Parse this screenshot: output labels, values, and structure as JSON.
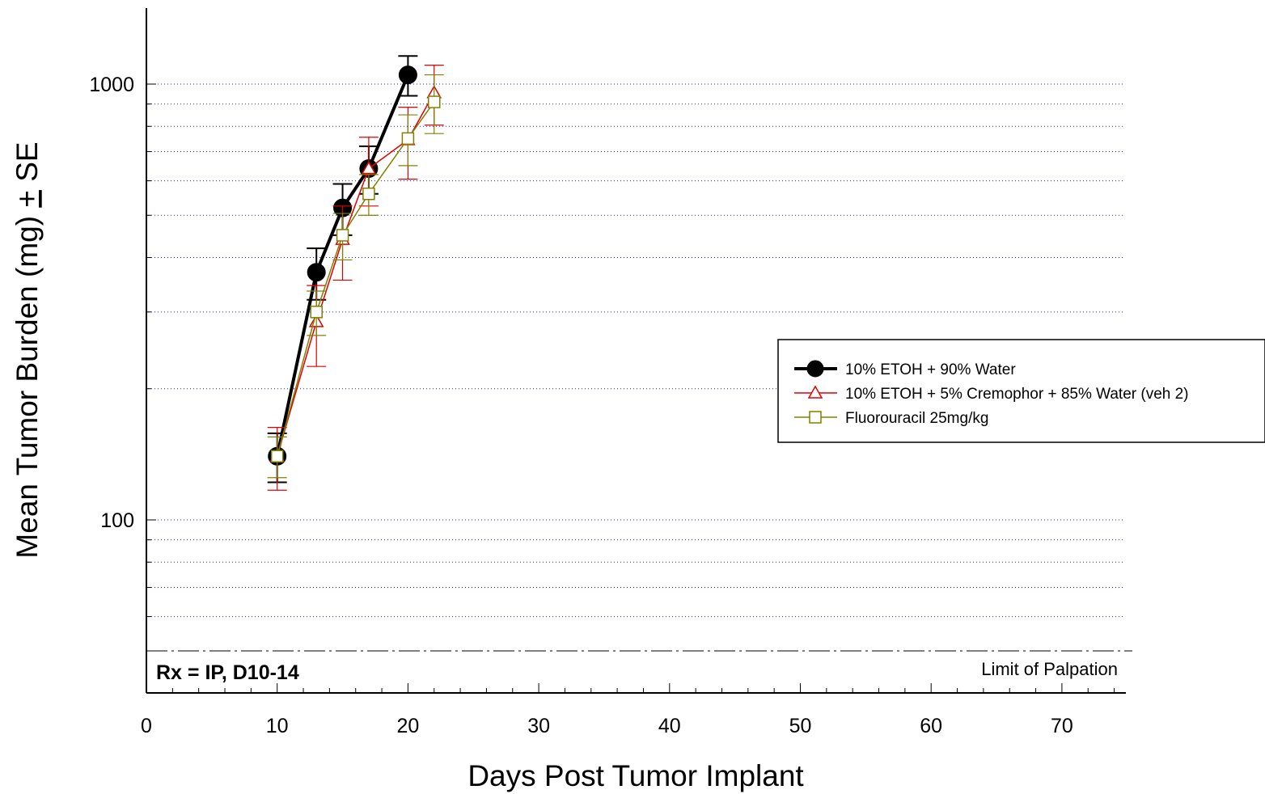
{
  "chart_data": {
    "type": "line",
    "title": "",
    "xlabel": "Days Post Tumor Implant",
    "ylabel_prefix": "Mean Tumor Burden (mg) ",
    "ylabel_pm": "+",
    "ylabel_suffix": " SE",
    "xlim": [
      0,
      75
    ],
    "ylim": [
      50,
      1600
    ],
    "yscale": "log",
    "x_ticks": [
      "0",
      "10",
      "20",
      "30",
      "40",
      "50",
      "60",
      "70"
    ],
    "y_tick_labels": [
      "100",
      "1000"
    ],
    "grid": "horizontal dotted, blue",
    "limit_line": {
      "y": 50,
      "label": "Limit of Palpation",
      "style": "dash-dot"
    },
    "annotation": "Rx = IP, D10-14",
    "legend_position": "right",
    "series": [
      {
        "name": "10% ETOH + 90% Water",
        "color": "#000000",
        "marker": "filled-circle",
        "x": [
          10,
          13,
          15,
          17,
          20
        ],
        "y": [
          140,
          370,
          520,
          640,
          1050
        ],
        "err": [
          18,
          50,
          70,
          80,
          110
        ]
      },
      {
        "name": "10% ETOH + 5% Cremophor + 85% Water (veh 2)",
        "color": "#e00000",
        "marker": "open-triangle",
        "x": [
          10,
          13,
          15,
          17,
          20,
          22
        ],
        "y": [
          140,
          285,
          440,
          640,
          745,
          955
        ],
        "err": [
          23,
          60,
          85,
          115,
          140,
          150
        ]
      },
      {
        "name": "Fluorouracil 25mg/kg",
        "color": "#808000",
        "marker": "open-square",
        "x": [
          10,
          13,
          15,
          17,
          20,
          22
        ],
        "y": [
          140,
          300,
          450,
          560,
          750,
          910
        ],
        "err": [
          15,
          35,
          55,
          60,
          100,
          140
        ]
      }
    ]
  }
}
